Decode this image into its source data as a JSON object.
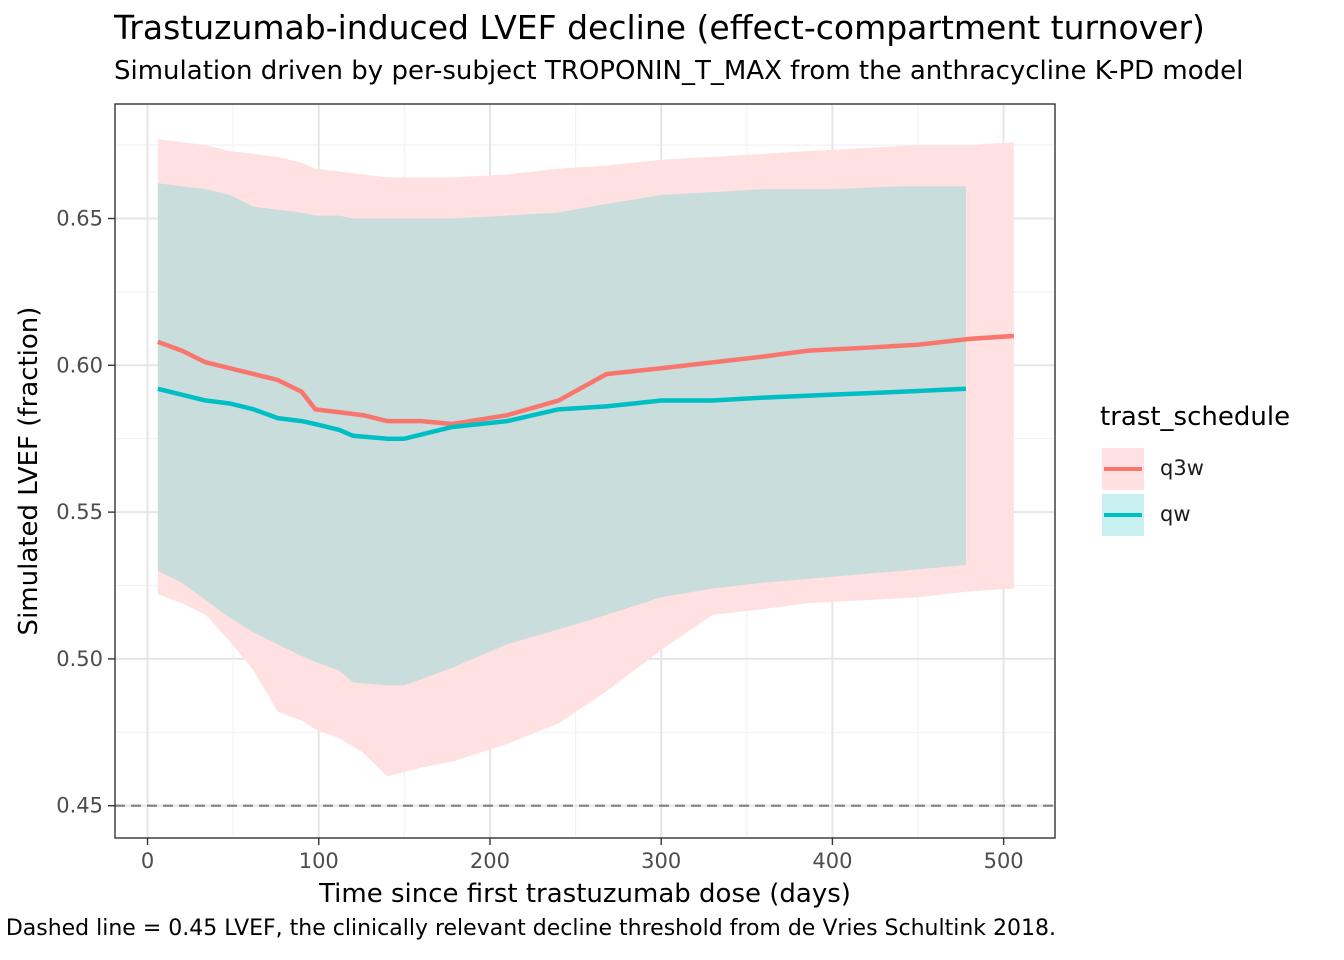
{
  "title": "Trastuzumab-induced LVEF decline (effect-compartment turnover)",
  "subtitle": "Simulation driven by per-subject TROPONIN_T_MAX from the anthracycline K-PD model",
  "caption": "Dashed line = 0.45 LVEF, the clinically relevant decline threshold from de Vries Schultink 2018.",
  "colors": {
    "q3w": "#F8766D",
    "qw": "#00BFC4",
    "q3w_band": "#FFE1E1",
    "qw_band": "#C9DDDD"
  },
  "legend": {
    "title": "trast_schedule",
    "placement": "right"
  },
  "chart_data": {
    "type": "line",
    "xlabel": "Time since first trastuzumab dose (days)",
    "ylabel": "Simulated LVEF (fraction)",
    "xlim": [
      -19,
      530
    ],
    "ylim": [
      0.439,
      0.689
    ],
    "x_ticks": [
      0,
      100,
      200,
      300,
      400,
      500
    ],
    "x_tick_labels": [
      "0",
      "100",
      "200",
      "300",
      "400",
      "500"
    ],
    "y_ticks": [
      0.45,
      0.5,
      0.55,
      0.6,
      0.65
    ],
    "y_tick_labels": [
      "0.45",
      "0.50",
      "0.55",
      "0.60",
      "0.65"
    ],
    "grid": true,
    "reference_line": {
      "y": 0.45,
      "style": "dashed"
    },
    "series": [
      {
        "name": "q3w",
        "x": [
          6,
          20,
          34,
          48,
          62,
          76,
          90,
          98,
          112,
          126,
          140,
          160,
          178,
          210,
          240,
          268,
          300,
          330,
          360,
          386,
          420,
          450,
          480,
          506
        ],
        "y": [
          0.608,
          0.605,
          0.601,
          0.599,
          0.597,
          0.595,
          0.591,
          0.585,
          0.584,
          0.583,
          0.581,
          0.581,
          0.58,
          0.583,
          0.588,
          0.597,
          0.599,
          0.601,
          0.603,
          0.605,
          0.606,
          0.607,
          0.609,
          0.61
        ],
        "lower": [
          0.522,
          0.519,
          0.515,
          0.506,
          0.496,
          0.482,
          0.479,
          0.476,
          0.473,
          0.468,
          0.46,
          0.463,
          0.465,
          0.471,
          0.478,
          0.489,
          0.503,
          0.515,
          0.517,
          0.519,
          0.52,
          0.521,
          0.523,
          0.524
        ],
        "upper": [
          0.677,
          0.676,
          0.675,
          0.673,
          0.672,
          0.671,
          0.669,
          0.667,
          0.666,
          0.665,
          0.664,
          0.664,
          0.664,
          0.665,
          0.667,
          0.668,
          0.67,
          0.671,
          0.672,
          0.673,
          0.674,
          0.675,
          0.675,
          0.676
        ]
      },
      {
        "name": "qw",
        "x": [
          6,
          20,
          34,
          48,
          62,
          76,
          90,
          98,
          112,
          120,
          140,
          150,
          178,
          210,
          240,
          268,
          300,
          330,
          360,
          400,
          440,
          478
        ],
        "y": [
          0.592,
          0.59,
          0.588,
          0.587,
          0.585,
          0.582,
          0.581,
          0.58,
          0.578,
          0.576,
          0.575,
          0.575,
          0.579,
          0.581,
          0.585,
          0.586,
          0.588,
          0.588,
          0.589,
          0.59,
          0.591,
          0.592
        ],
        "lower": [
          0.53,
          0.526,
          0.52,
          0.514,
          0.509,
          0.505,
          0.501,
          0.499,
          0.496,
          0.492,
          0.491,
          0.491,
          0.497,
          0.505,
          0.51,
          0.515,
          0.521,
          0.524,
          0.526,
          0.528,
          0.53,
          0.532
        ],
        "upper": [
          0.662,
          0.661,
          0.66,
          0.658,
          0.654,
          0.653,
          0.652,
          0.651,
          0.651,
          0.65,
          0.65,
          0.65,
          0.65,
          0.651,
          0.652,
          0.655,
          0.658,
          0.659,
          0.66,
          0.66,
          0.661,
          0.661
        ]
      }
    ]
  }
}
